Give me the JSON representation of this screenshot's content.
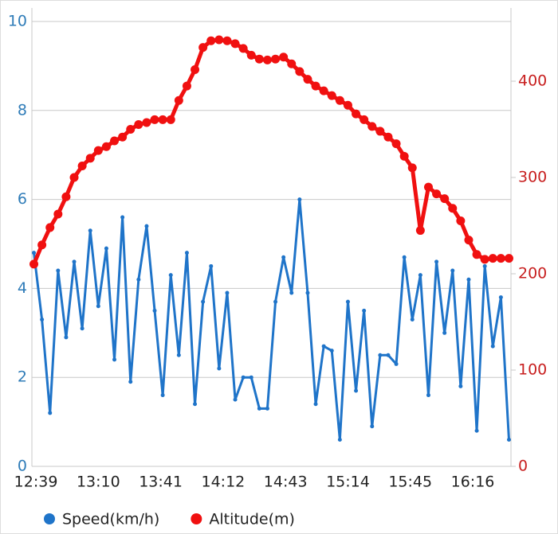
{
  "chart_data": {
    "type": "line",
    "x": [
      "12:38",
      "12:42",
      "12:46",
      "12:50",
      "12:54",
      "12:58",
      "13:02",
      "13:06",
      "13:10",
      "13:14",
      "13:18",
      "13:22",
      "13:26",
      "13:30",
      "13:34",
      "13:38",
      "13:42",
      "13:46",
      "13:50",
      "13:54",
      "13:58",
      "14:02",
      "14:06",
      "14:10",
      "14:14",
      "14:18",
      "14:22",
      "14:26",
      "14:30",
      "14:34",
      "14:38",
      "14:42",
      "14:46",
      "14:50",
      "14:54",
      "14:58",
      "15:02",
      "15:06",
      "15:10",
      "15:14",
      "15:18",
      "15:22",
      "15:26",
      "15:30",
      "15:34",
      "15:38",
      "15:42",
      "15:46",
      "15:50",
      "15:54",
      "15:58",
      "16:02",
      "16:06",
      "16:10",
      "16:14",
      "16:18",
      "16:22",
      "16:26",
      "16:30",
      "16:34"
    ],
    "xlim": [
      "12:37",
      "16:35"
    ],
    "xticks": [
      "12:39",
      "13:10",
      "13:41",
      "14:12",
      "14:43",
      "15:14",
      "15:45",
      "16:16"
    ],
    "ylim": [
      0,
      10
    ],
    "yticks": [
      0,
      2,
      4,
      6,
      8,
      10
    ],
    "y2lim": [
      0,
      462
    ],
    "y2ticks": [
      0,
      100,
      200,
      300,
      400
    ],
    "grid": true,
    "legend": "bottom",
    "series": [
      {
        "name": "Speed(km/h)",
        "color": "#1f74c9",
        "values": [
          4.8,
          3.3,
          1.2,
          4.4,
          2.9,
          4.6,
          3.1,
          5.3,
          3.6,
          4.9,
          2.4,
          5.6,
          1.9,
          4.2,
          5.4,
          3.5,
          1.6,
          4.3,
          2.5,
          4.8,
          1.4,
          3.7,
          4.5,
          2.2,
          3.9,
          1.5,
          2.0,
          2.0,
          1.3,
          1.3,
          3.7,
          4.7,
          3.9,
          6.0,
          3.9,
          1.4,
          2.7,
          2.6,
          0.6,
          3.7,
          1.7,
          3.5,
          0.9,
          2.5,
          2.5,
          2.3,
          4.7,
          3.3,
          4.3,
          1.6,
          4.6,
          3.0,
          4.4,
          1.8,
          4.2,
          0.8,
          4.5,
          2.7,
          3.8,
          0.6
        ]
      },
      {
        "name": "Altitude(m)",
        "color": "#f01010",
        "axis": "y2",
        "values": [
          210,
          230,
          248,
          262,
          280,
          300,
          312,
          320,
          328,
          332,
          338,
          342,
          350,
          355,
          357,
          360,
          360,
          360,
          380,
          395,
          412,
          435,
          442,
          443,
          442,
          439,
          434,
          427,
          423,
          422,
          423,
          425,
          418,
          410,
          402,
          395,
          390,
          385,
          380,
          375,
          366,
          360,
          353,
          348,
          342,
          335,
          322,
          310,
          245,
          290,
          283,
          278,
          268,
          255,
          235,
          220,
          215,
          216,
          216,
          216
        ]
      }
    ]
  }
}
